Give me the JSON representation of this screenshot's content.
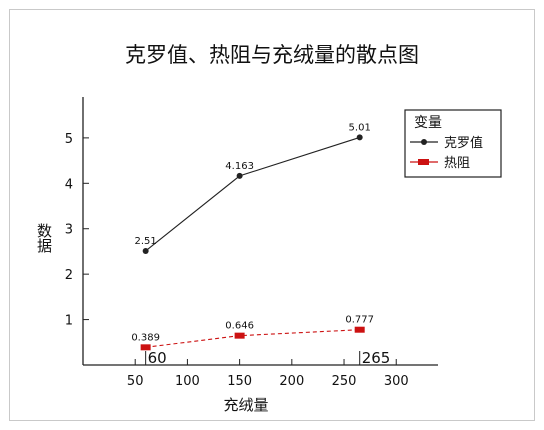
{
  "chart_data": {
    "type": "scatter",
    "title": "克罗值、热阻与充绒量的散点图",
    "xlabel": "充绒量",
    "ylabel": "数据",
    "xlim": [
      0,
      340
    ],
    "ylim": [
      0,
      5.9
    ],
    "xticks": [
      50,
      100,
      150,
      200,
      250,
      300
    ],
    "yticks": [
      1,
      2,
      3,
      4,
      5
    ],
    "annotations": [
      "60",
      "265"
    ],
    "legend": {
      "title": "变量",
      "placement": "top-right"
    },
    "series": [
      {
        "name": "克罗值",
        "color": "#222222",
        "marker": "circle",
        "line": "solid",
        "x": [
          60,
          150,
          265
        ],
        "y": [
          2.51,
          4.163,
          5.01
        ],
        "labels": [
          "2.51",
          "4.163",
          "5.01"
        ]
      },
      {
        "name": "热阻",
        "color": "#cc1111",
        "marker": "square",
        "line": "dashed",
        "x": [
          60,
          150,
          265
        ],
        "y": [
          0.389,
          0.646,
          0.777
        ],
        "labels": [
          "0.389",
          "0.646",
          "0.777"
        ]
      }
    ]
  }
}
